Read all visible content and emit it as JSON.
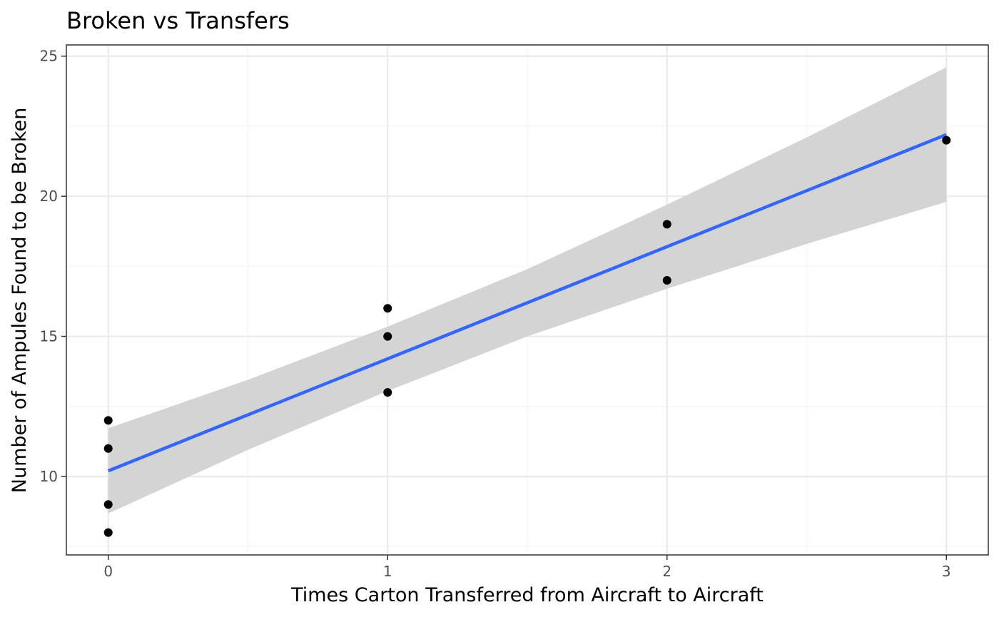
{
  "chart_data": {
    "type": "scatter",
    "title": "Broken vs Transfers",
    "xlabel": "Times Carton Transferred from Aircraft to Aircraft",
    "ylabel": "Number of Ampules Found to be Broken",
    "xlim": [
      -0.15,
      3.15
    ],
    "ylim": [
      7.2,
      25.4
    ],
    "x_ticks": [
      0,
      1,
      2,
      3
    ],
    "y_ticks": [
      10,
      15,
      20,
      25
    ],
    "x_tick_labels": [
      "0",
      "1",
      "2",
      "3"
    ],
    "y_tick_labels": [
      "10",
      "15",
      "20",
      "25"
    ],
    "grid": true,
    "points": [
      {
        "x": 0,
        "y": 12
      },
      {
        "x": 0,
        "y": 11
      },
      {
        "x": 0,
        "y": 9
      },
      {
        "x": 0,
        "y": 8
      },
      {
        "x": 1,
        "y": 16
      },
      {
        "x": 1,
        "y": 15
      },
      {
        "x": 1,
        "y": 13
      },
      {
        "x": 2,
        "y": 19
      },
      {
        "x": 2,
        "y": 17
      },
      {
        "x": 3,
        "y": 22
      }
    ],
    "fit_line": {
      "method": "linear",
      "intercept": 10.2,
      "slope": 4.0,
      "x_range": [
        0,
        3
      ]
    },
    "confidence_band": [
      {
        "x": 0,
        "lower": 8.68,
        "upper": 11.72
      },
      {
        "x": 0.5,
        "lower": 10.95,
        "upper": 13.45
      },
      {
        "x": 1,
        "lower": 13.05,
        "upper": 15.35
      },
      {
        "x": 1.5,
        "lower": 15.0,
        "upper": 17.4
      },
      {
        "x": 2,
        "lower": 16.7,
        "upper": 19.7
      },
      {
        "x": 2.5,
        "lower": 18.3,
        "upper": 22.1
      },
      {
        "x": 3,
        "lower": 19.8,
        "upper": 24.6
      }
    ],
    "colors": {
      "points": "#000000",
      "fit_line": "#3366ff",
      "band": "#d4d4d4",
      "grid_major": "#ebebeb",
      "grid_minor": "#f4f4f4",
      "panel_border": "#333333",
      "tick_label": "#4d4d4d"
    }
  }
}
